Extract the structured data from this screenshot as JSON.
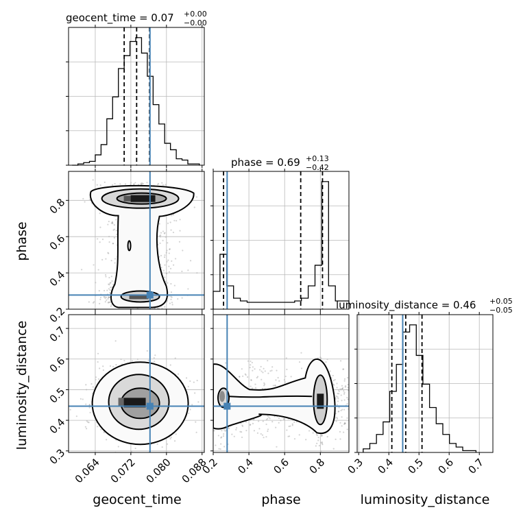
{
  "chart_data": {
    "type": "corner",
    "truth_color": "#4682b4",
    "parameters": [
      {
        "name": "geocent_time",
        "xlabel": "geocent_time",
        "title": "geocent_time = 0.07",
        "title_sup": "+0.00",
        "title_sub": "−0.00",
        "range": [
          0.058,
          0.0885
        ],
        "ticks": [
          0.064,
          0.072,
          0.08,
          0.088
        ],
        "tick_labels": [
          "0.064",
          "0.072",
          "0.080",
          "0.088"
        ],
        "quantiles": [
          0.0705,
          0.0733,
          0.0762
        ],
        "truth": 0.0763,
        "hist_bins": [
          0.0588,
          0.0601,
          0.0614,
          0.0627,
          0.064,
          0.0653,
          0.0666,
          0.0679,
          0.0692,
          0.0705,
          0.0718,
          0.0731,
          0.0744,
          0.0757,
          0.077,
          0.0783,
          0.0796,
          0.0809,
          0.0822,
          0.0835,
          0.0848,
          0.0861,
          0.0874
        ],
        "hist_counts": [
          0.0,
          0.01,
          0.02,
          0.03,
          0.08,
          0.16,
          0.36,
          0.53,
          0.75,
          0.85,
          0.96,
          0.99,
          0.87,
          0.69,
          0.47,
          0.32,
          0.17,
          0.12,
          0.05,
          0.04,
          0.01,
          0.01
        ]
      },
      {
        "name": "phase",
        "xlabel": "phase",
        "ylabel": "phase",
        "title": "phase = 0.69",
        "title_sup": "+0.13",
        "title_sub": "−0.42",
        "range": [
          0.2,
          0.96
        ],
        "ticks": [
          0.2,
          0.4,
          0.6,
          0.8
        ],
        "tick_labels": [
          "0.2",
          "0.4",
          "0.6",
          "0.8"
        ],
        "quantiles": [
          0.258,
          0.69,
          0.812
        ],
        "truth": 0.278,
        "hist_bins": [
          0.2,
          0.238,
          0.276,
          0.314,
          0.352,
          0.39,
          0.428,
          0.466,
          0.504,
          0.542,
          0.58,
          0.618,
          0.656,
          0.694,
          0.732,
          0.77,
          0.808,
          0.846,
          0.884,
          0.922,
          0.96
        ],
        "hist_counts": [
          0.13,
          0.4,
          0.17,
          0.08,
          0.06,
          0.05,
          0.05,
          0.05,
          0.05,
          0.05,
          0.05,
          0.05,
          0.06,
          0.08,
          0.17,
          0.32,
          0.93,
          0.17,
          0.06,
          0.06
        ]
      },
      {
        "name": "luminosity_distance",
        "xlabel": "luminosity_distance",
        "ylabel": "luminosity_distance",
        "title": "luminosity_distance = 0.46",
        "title_sup": "+0.05",
        "title_sub": "−0.05",
        "range": [
          0.295,
          0.745
        ],
        "ticks": [
          0.3,
          0.4,
          0.5,
          0.6,
          0.7
        ],
        "tick_labels": [
          "0.3",
          "0.4",
          "0.5",
          "0.6",
          "0.7"
        ],
        "quantiles": [
          0.41,
          0.456,
          0.51
        ],
        "truth": 0.446,
        "hist_bins": [
          0.315,
          0.337,
          0.359,
          0.381,
          0.403,
          0.425,
          0.447,
          0.469,
          0.491,
          0.513,
          0.535,
          0.557,
          0.579,
          0.601,
          0.623,
          0.645,
          0.667,
          0.689
        ],
        "hist_counts": [
          0.02,
          0.05,
          0.1,
          0.17,
          0.34,
          0.49,
          0.67,
          0.71,
          0.54,
          0.38,
          0.25,
          0.16,
          0.1,
          0.05,
          0.03,
          0.01,
          0.01
        ]
      }
    ],
    "pairs": [
      {
        "x": "geocent_time",
        "y": "phase",
        "density_peak": [
          0.0738,
          0.81
        ],
        "secondary_peak": [
          0.074,
          0.27
        ]
      },
      {
        "x": "geocent_time",
        "y": "luminosity_distance",
        "density_peak": [
          0.0738,
          0.46
        ]
      },
      {
        "x": "phase",
        "y": "luminosity_distance",
        "density_peak": [
          0.8,
          0.46
        ],
        "secondary_peak": [
          0.25,
          0.46
        ]
      }
    ],
    "grid": true
  }
}
